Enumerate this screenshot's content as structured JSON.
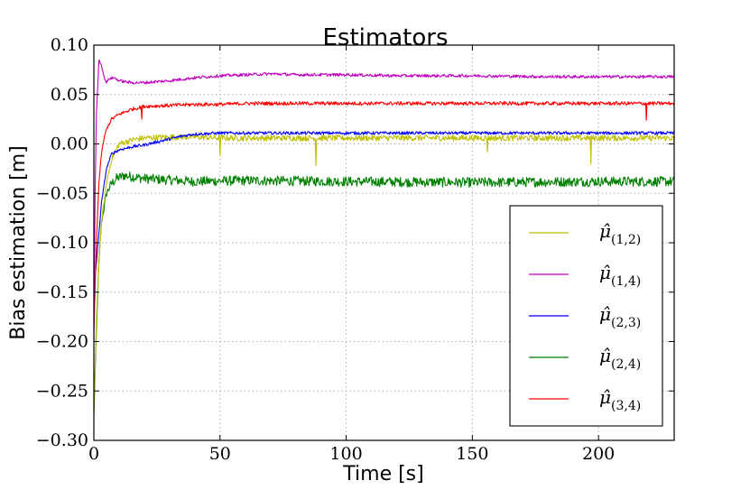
{
  "chart_data": {
    "type": "line",
    "title": "Estimators",
    "xlabel": "Time [s]",
    "ylabel": "Bias estimation [m]",
    "xlim": [
      0,
      230
    ],
    "ylim": [
      -0.3,
      0.1
    ],
    "grid": true,
    "legend_position": "lower-right",
    "x_ticks": [
      0,
      50,
      100,
      150,
      200
    ],
    "x_tick_labels": [
      "0",
      "50",
      "100",
      "150",
      "200"
    ],
    "y_ticks": [
      0.1,
      0.05,
      0.0,
      -0.05,
      -0.1,
      -0.15,
      -0.2,
      -0.25,
      -0.3
    ],
    "y_tick_labels": [
      "0.10",
      "0.05",
      "0.00",
      "−0.05",
      "−0.10",
      "−0.15",
      "−0.20",
      "−0.25",
      "−0.30"
    ],
    "series": [
      {
        "name": "μ̂(1,2)",
        "symbol": "μ̂",
        "subscript": "(1,2)",
        "color": "#bfbf00",
        "x": [
          0,
          1,
          2,
          3,
          5,
          7,
          10,
          15,
          20,
          30,
          40,
          50,
          60,
          80,
          100,
          120,
          150,
          180,
          200,
          230
        ],
        "y": [
          -0.27,
          -0.18,
          -0.12,
          -0.08,
          -0.04,
          -0.015,
          0.0,
          0.004,
          0.006,
          0.007,
          0.007,
          0.006,
          0.006,
          0.006,
          0.006,
          0.006,
          0.006,
          0.006,
          0.006,
          0.006
        ],
        "noise": 0.003,
        "spikes": [
          {
            "x": 50,
            "y": -0.012
          },
          {
            "x": 88,
            "y": -0.022
          },
          {
            "x": 156,
            "y": -0.008
          },
          {
            "x": 197,
            "y": -0.02
          },
          {
            "x": 230,
            "y": -0.003
          }
        ]
      },
      {
        "name": "μ̂(1,4)",
        "symbol": "μ̂",
        "subscript": "(1,4)",
        "color": "#bf00bf",
        "x": [
          0,
          0.5,
          1,
          2,
          3,
          4,
          5,
          6,
          8,
          10,
          15,
          20,
          25,
          30,
          40,
          50,
          60,
          70,
          80,
          100,
          120,
          150,
          180,
          200,
          230
        ],
        "y": [
          -0.2,
          -0.05,
          0.03,
          0.085,
          0.08,
          0.068,
          0.062,
          0.066,
          0.067,
          0.064,
          0.062,
          0.062,
          0.063,
          0.064,
          0.067,
          0.069,
          0.07,
          0.071,
          0.07,
          0.07,
          0.069,
          0.069,
          0.068,
          0.068,
          0.068
        ],
        "noise": 0.0015,
        "spikes": []
      },
      {
        "name": "μ̂(2,3)",
        "symbol": "μ̂",
        "subscript": "(2,3)",
        "color": "#0000ff",
        "x": [
          0,
          1,
          2,
          3,
          5,
          7,
          10,
          15,
          20,
          25,
          30,
          35,
          40,
          50,
          70,
          100,
          150,
          200,
          230
        ],
        "y": [
          -0.15,
          -0.12,
          -0.09,
          -0.06,
          -0.025,
          -0.01,
          -0.006,
          -0.003,
          -0.001,
          0.002,
          0.005,
          0.008,
          0.01,
          0.011,
          0.011,
          0.011,
          0.011,
          0.011,
          0.011
        ],
        "noise": 0.0015,
        "spikes": []
      },
      {
        "name": "μ̂(2,4)",
        "symbol": "μ̂",
        "subscript": "(2,4)",
        "color": "#008000",
        "x": [
          0,
          1,
          2,
          3,
          5,
          7,
          9,
          12,
          20,
          40,
          60,
          100,
          150,
          200,
          230
        ],
        "y": [
          -0.275,
          -0.19,
          -0.12,
          -0.08,
          -0.05,
          -0.04,
          -0.035,
          -0.032,
          -0.035,
          -0.038,
          -0.037,
          -0.038,
          -0.039,
          -0.038,
          -0.038
        ],
        "noise": 0.005,
        "spikes": []
      },
      {
        "name": "μ̂(3,4)",
        "symbol": "μ̂",
        "subscript": "(3,4)",
        "color": "#ff0000",
        "x": [
          0,
          1,
          2,
          3,
          4,
          5,
          7,
          10,
          15,
          20,
          30,
          40,
          50,
          60,
          80,
          100,
          150,
          200,
          230
        ],
        "y": [
          -0.19,
          -0.1,
          -0.04,
          -0.01,
          0.005,
          0.015,
          0.025,
          0.03,
          0.035,
          0.038,
          0.039,
          0.04,
          0.04,
          0.041,
          0.041,
          0.041,
          0.041,
          0.041,
          0.041
        ],
        "noise": 0.0018,
        "spikes": [
          {
            "x": 19,
            "y": 0.025
          },
          {
            "x": 219,
            "y": 0.024
          }
        ]
      }
    ]
  }
}
